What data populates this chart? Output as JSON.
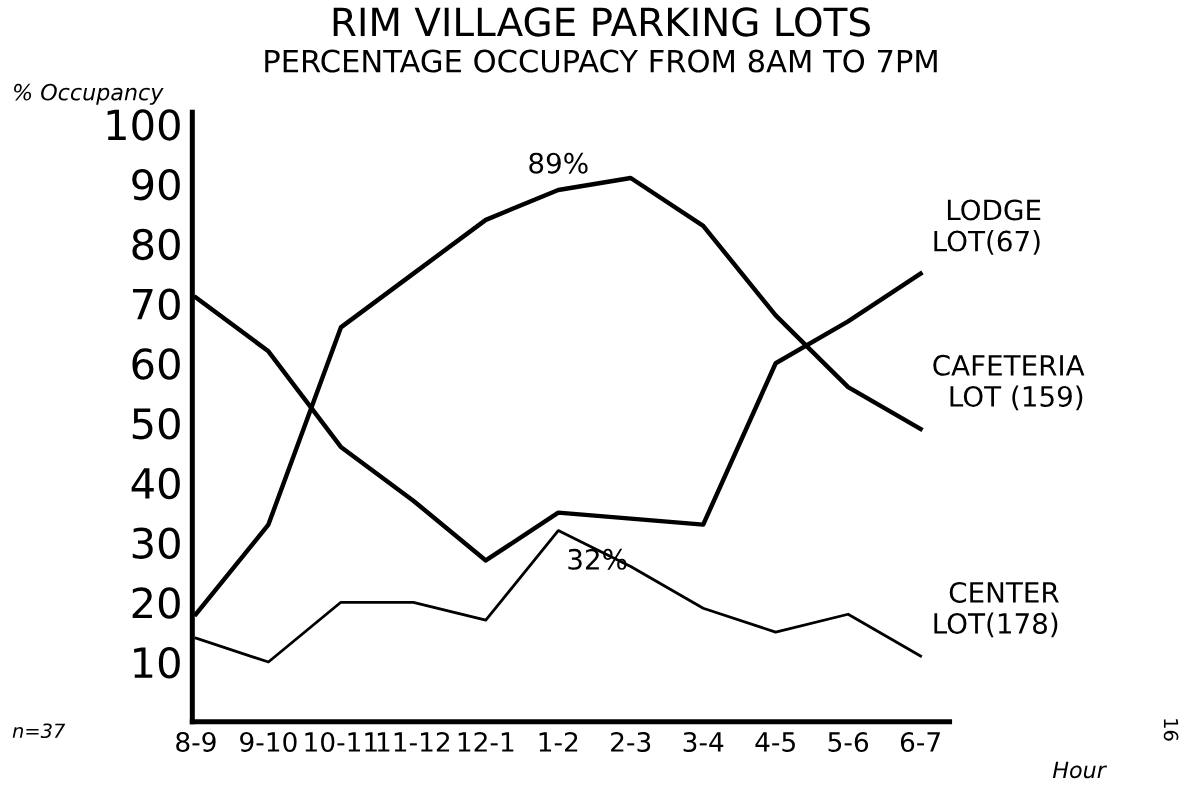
{
  "chart_data": {
    "type": "line",
    "title": "RIM VILLAGE PARKING LOTS",
    "subtitle": "PERCENTAGE OCCUPACY FROM 8AM TO 7PM",
    "ylabel": "% Occupancy",
    "xlabel": "Hour",
    "categories": [
      "8-9",
      "9-10",
      "10-11",
      "11-12",
      "12-1",
      "1-2",
      "2-3",
      "3-4",
      "4-5",
      "5-6",
      "6-7"
    ],
    "series": [
      {
        "name": "LODGE LOT(67)",
        "color": "#000000",
        "values": [
          71,
          62,
          46,
          37,
          27,
          35,
          34,
          33,
          60,
          67,
          75
        ]
      },
      {
        "name": "CAFETERIA LOT (159)",
        "color": "#000000",
        "values": [
          18,
          33,
          66,
          75,
          84,
          89,
          91,
          83,
          68,
          56,
          49
        ],
        "value_labels": [
          null,
          null,
          null,
          null,
          null,
          "89%",
          null,
          null,
          null,
          null,
          null
        ]
      },
      {
        "name": "CENTER LOT(178)",
        "color": "#000000",
        "values": [
          14,
          10,
          20,
          20,
          17,
          32,
          26,
          19,
          15,
          18,
          11
        ],
        "value_labels": [
          null,
          null,
          null,
          null,
          null,
          "32%",
          null,
          null,
          null,
          null,
          null
        ]
      }
    ],
    "ylim": [
      0,
      102
    ],
    "yticks": [
      10,
      20,
      30,
      40,
      50,
      60,
      70,
      80,
      90,
      100
    ],
    "grid": false,
    "legend": false,
    "marker": "none",
    "line_style": "solid",
    "annotations": [
      "n=37",
      "16"
    ]
  }
}
